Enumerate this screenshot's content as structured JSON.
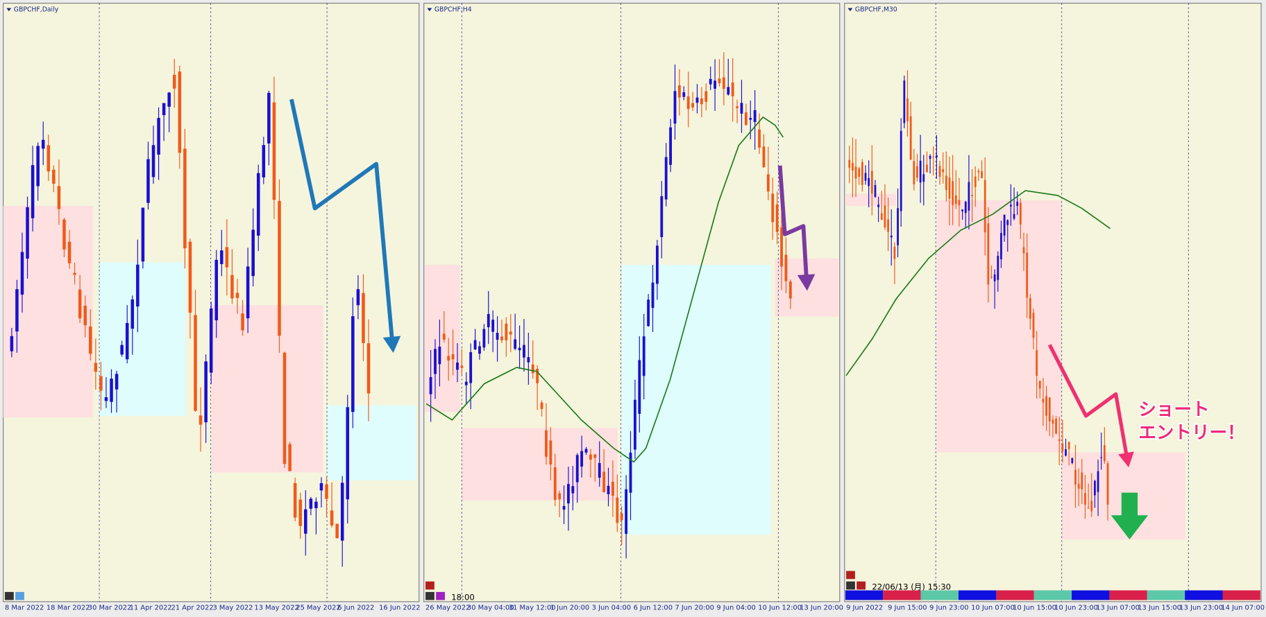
{
  "panels": [
    {
      "title": "GBPCHF,Daily",
      "x_labels": [
        "8 Mar 2022",
        "18 Mar 2022",
        "30 Mar 2022",
        "11 Apr 2022",
        "21 Apr 2022",
        "3 May 2022",
        "13 May 2022",
        "25 May 2022",
        "6 Jun 2022",
        "16 Jun 2022"
      ]
    },
    {
      "title": "GBPCHF,H4",
      "x_labels": [
        "26 May 2022",
        "30 May 04:00",
        "31 May 12:00",
        "1 Jun 20:00",
        "3 Jun 04:00",
        "6 Jun 12:00",
        "7 Jun 20:00",
        "9 Jun 04:00",
        "10 Jun 12:00",
        "13 Jun 20:00"
      ]
    },
    {
      "title": "GBPCHF,M30",
      "x_labels": [
        "9 Jun 2022",
        "9 Jun 15:00",
        "9 Jun 23:00",
        "10 Jun 07:00",
        "10 Jun 15:00",
        "10 Jun 23:00",
        "13 Jun 07:00",
        "13 Jun 15:00",
        "13 Jun 23:00",
        "14 Jun 07:00"
      ]
    }
  ],
  "timestamps": {
    "h4": "18:00",
    "m30": "22/06/13 (月) 15:30"
  },
  "annotation": {
    "line1": "ショート",
    "line2": "エントリー！"
  }
}
